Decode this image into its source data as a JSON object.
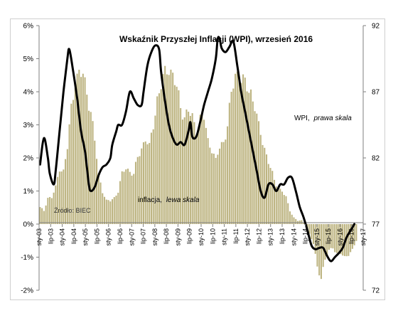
{
  "chart_data": {
    "type": "bar",
    "title": "Wskaźnik Przyszłej Inflacji (WPI), wrzesień 2016",
    "source_note": "Źródło: BIEC",
    "annotations": {
      "wpi": "WPI,",
      "wpi_italic": "prawa skala",
      "inflation": "inflacja,",
      "inflation_italic": "lewa skala"
    },
    "x_tick_labels": [
      "sty-03",
      "lip-03",
      "sty-04",
      "lip-04",
      "sty-05",
      "lip-05",
      "sty-06",
      "lip-06",
      "sty-07",
      "lip-07",
      "sty-08",
      "lip-08",
      "sty-09",
      "lip-09",
      "sty-10",
      "lip-10",
      "sty-11",
      "lip-11",
      "sty-12",
      "lip-12",
      "sty-13",
      "lip-13",
      "sty-14",
      "lip-14",
      "sty-15",
      "lip-15",
      "sty-16",
      "lip-16",
      "sty-17"
    ],
    "y_left": {
      "ticks": [
        "-2%",
        "-1%",
        "0%",
        "1%",
        "2%",
        "3%",
        "4%",
        "5%",
        "6%"
      ],
      "lim": [
        -2,
        6
      ]
    },
    "y_right": {
      "ticks": [
        "72",
        "77",
        "82",
        "87",
        "92"
      ],
      "lim": [
        72,
        92
      ]
    },
    "grid": false,
    "bar_color": "#bdb481",
    "line_color": "#000000",
    "bar_knots": [
      [
        0,
        0.5
      ],
      [
        2,
        0.4
      ],
      [
        4,
        0.8
      ],
      [
        6,
        0.8
      ],
      [
        8,
        1.1
      ],
      [
        10,
        1.7
      ],
      [
        12,
        1.6
      ],
      [
        14,
        2.3
      ],
      [
        16,
        3.5
      ],
      [
        18,
        4.4
      ],
      [
        20,
        4.5
      ],
      [
        22,
        4.5
      ],
      [
        24,
        4.0
      ],
      [
        26,
        3.4
      ],
      [
        28,
        2.5
      ],
      [
        30,
        1.5
      ],
      [
        32,
        1.0
      ],
      [
        34,
        0.7
      ],
      [
        36,
        0.7
      ],
      [
        38,
        0.8
      ],
      [
        40,
        1.0
      ],
      [
        42,
        1.5
      ],
      [
        44,
        1.7
      ],
      [
        46,
        1.6
      ],
      [
        48,
        1.5
      ],
      [
        50,
        2.0
      ],
      [
        52,
        2.3
      ],
      [
        54,
        2.6
      ],
      [
        56,
        2.3
      ],
      [
        58,
        3.0
      ],
      [
        60,
        3.8
      ],
      [
        62,
        4.2
      ],
      [
        64,
        4.5
      ],
      [
        66,
        4.8
      ],
      [
        68,
        4.5
      ],
      [
        70,
        4.1
      ],
      [
        72,
        3.5
      ],
      [
        74,
        3.3
      ],
      [
        76,
        3.4
      ],
      [
        78,
        3.2
      ],
      [
        80,
        2.8
      ],
      [
        82,
        3.2
      ],
      [
        84,
        3.2
      ],
      [
        86,
        2.5
      ],
      [
        88,
        2.3
      ],
      [
        90,
        1.9
      ],
      [
        92,
        2.3
      ],
      [
        94,
        2.5
      ],
      [
        96,
        3.0
      ],
      [
        98,
        3.9
      ],
      [
        100,
        4.5
      ],
      [
        102,
        4.6
      ],
      [
        104,
        4.3
      ],
      [
        106,
        4.1
      ],
      [
        108,
        4.0
      ],
      [
        110,
        3.6
      ],
      [
        112,
        2.9
      ],
      [
        114,
        2.5
      ],
      [
        116,
        2.1
      ],
      [
        118,
        1.7
      ],
      [
        120,
        1.3
      ],
      [
        122,
        1.1
      ],
      [
        124,
        1.0
      ],
      [
        126,
        0.8
      ],
      [
        128,
        0.4
      ],
      [
        130,
        0.2
      ],
      [
        132,
        0.1
      ],
      [
        134,
        0.1
      ],
      [
        136,
        0.0
      ],
      [
        138,
        -0.3
      ],
      [
        140,
        -0.6
      ],
      [
        142,
        -1.3
      ],
      [
        144,
        -1.6
      ],
      [
        146,
        -1.1
      ],
      [
        148,
        -0.8
      ],
      [
        150,
        -0.7
      ],
      [
        152,
        -0.9
      ],
      [
        154,
        -0.9
      ],
      [
        156,
        -1.0
      ],
      [
        158,
        -0.9
      ],
      [
        160,
        -0.8
      ],
      [
        162,
        -0.5
      ]
    ],
    "wpi_knots": [
      [
        0,
        81.5
      ],
      [
        2,
        83.5
      ],
      [
        4,
        82.0
      ],
      [
        5,
        80.8
      ],
      [
        7,
        80.0
      ],
      [
        8,
        81.0
      ],
      [
        10,
        84.0
      ],
      [
        12,
        87.0
      ],
      [
        14,
        89.5
      ],
      [
        15,
        90.2
      ],
      [
        17,
        88.5
      ],
      [
        19,
        86.5
      ],
      [
        21,
        84.0
      ],
      [
        23,
        82.5
      ],
      [
        25,
        80.0
      ],
      [
        26,
        79.5
      ],
      [
        28,
        79.8
      ],
      [
        30,
        80.7
      ],
      [
        32,
        81.3
      ],
      [
        34,
        81.5
      ],
      [
        36,
        82.0
      ],
      [
        37,
        83.0
      ],
      [
        39,
        84.0
      ],
      [
        40,
        84.5
      ],
      [
        42,
        84.5
      ],
      [
        44,
        85.5
      ],
      [
        46,
        87.0
      ],
      [
        48,
        86.5
      ],
      [
        50,
        86.0
      ],
      [
        52,
        86.0
      ],
      [
        53,
        87.0
      ],
      [
        55,
        89.0
      ],
      [
        57,
        90.0
      ],
      [
        59,
        90.5
      ],
      [
        61,
        90.2
      ],
      [
        62,
        88.5
      ],
      [
        64,
        86.3
      ],
      [
        66,
        84.5
      ],
      [
        68,
        83.5
      ],
      [
        70,
        83.0
      ],
      [
        72,
        83.2
      ],
      [
        74,
        83.0
      ],
      [
        76,
        84.0
      ],
      [
        77,
        84.7
      ],
      [
        78,
        83.6
      ],
      [
        80,
        83.6
      ],
      [
        82,
        84.7
      ],
      [
        84,
        86.0
      ],
      [
        86,
        87.0
      ],
      [
        88,
        88.0
      ],
      [
        90,
        89.5
      ],
      [
        91,
        91.0
      ],
      [
        92,
        91.0
      ],
      [
        93,
        90.3
      ],
      [
        95,
        90.0
      ],
      [
        97,
        90.4
      ],
      [
        99,
        90.8
      ],
      [
        101,
        89.0
      ],
      [
        103,
        87.0
      ],
      [
        105,
        85.5
      ],
      [
        107,
        84.0
      ],
      [
        109,
        82.5
      ],
      [
        111,
        81.0
      ],
      [
        113,
        79.5
      ],
      [
        115,
        79.0
      ],
      [
        117,
        80.0
      ],
      [
        119,
        80.0
      ],
      [
        121,
        79.5
      ],
      [
        123,
        80.0
      ],
      [
        125,
        80.0
      ],
      [
        127,
        80.5
      ],
      [
        129,
        80.5
      ],
      [
        131,
        79.5
      ],
      [
        133,
        78.3
      ],
      [
        135,
        77.5
      ],
      [
        137,
        76.5
      ],
      [
        139,
        75.4
      ],
      [
        141,
        75.1
      ],
      [
        143,
        75.2
      ],
      [
        145,
        75.2
      ],
      [
        147,
        74.6
      ],
      [
        149,
        74.2
      ],
      [
        151,
        74.5
      ],
      [
        153,
        74.8
      ],
      [
        155,
        75.2
      ],
      [
        157,
        76.0
      ],
      [
        159,
        76.5
      ],
      [
        161,
        77.0
      ]
    ]
  }
}
